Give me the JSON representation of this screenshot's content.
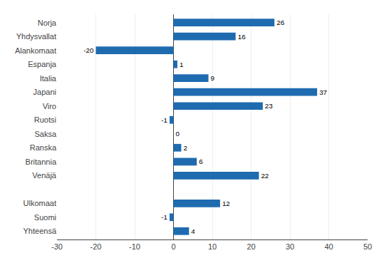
{
  "chart_data": {
    "type": "bar",
    "orientation": "horizontal",
    "categories": [
      "Yhteensä",
      "Suomi",
      "Ulkomaat",
      null,
      "Venäjä",
      "Britannia",
      "Ranska",
      "Saksa",
      "Ruotsi",
      "Viro",
      "Japani",
      "Italia",
      "Espanja",
      "Alankomaat",
      "Yhdysvallat",
      "Norja"
    ],
    "values": [
      4,
      -1,
      12,
      null,
      22,
      6,
      2,
      0,
      -1,
      23,
      37,
      9,
      1,
      -20,
      16,
      26
    ],
    "color": "#1F6BB0",
    "xlim": [
      -30,
      50
    ],
    "xticks": [
      -30,
      -20,
      -10,
      0,
      10,
      20,
      30,
      40,
      50
    ],
    "grid": true,
    "data_labels": true
  }
}
